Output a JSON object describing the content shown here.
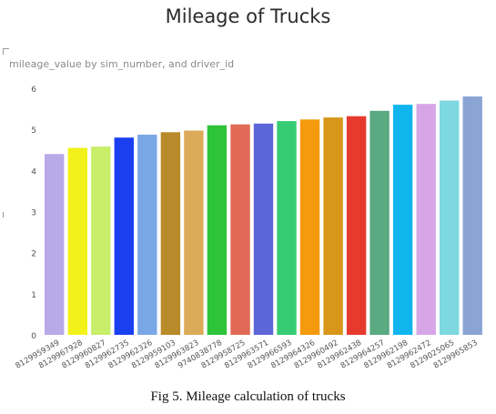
{
  "chart_data": {
    "type": "bar",
    "title": "Mileage of Trucks",
    "subtitle": "mileage_value by sim_number, and driver_id",
    "xlabel": "",
    "ylabel": "",
    "ylim": [
      0,
      6
    ],
    "yticks": [
      "0",
      "1",
      "2",
      "3",
      "4",
      "5",
      "6"
    ],
    "grid": false,
    "categories": [
      "8129959349",
      "8129967928",
      "8129960827",
      "8129962735",
      "8129962326",
      "8129959103",
      "8129963823",
      "9740838778",
      "8129958725",
      "8129963571",
      "8129966593",
      "8129964326",
      "8129960492",
      "8129962438",
      "8129964257",
      "8129962198",
      "8129962472",
      "8129025065",
      "8129965853"
    ],
    "values": [
      4.4,
      4.55,
      4.58,
      4.8,
      4.87,
      4.93,
      4.97,
      5.1,
      5.12,
      5.14,
      5.2,
      5.24,
      5.29,
      5.32,
      5.45,
      5.6,
      5.62,
      5.7,
      5.8
    ],
    "colors": [
      "#b8a9e8",
      "#f2f21a",
      "#c8ee6a",
      "#1a3ff0",
      "#7aa7e6",
      "#b88a2a",
      "#dcab5a",
      "#2ec43a",
      "#e06a55",
      "#5c66d6",
      "#36cc74",
      "#f59a0c",
      "#d8961a",
      "#e63a2e",
      "#5aaa82",
      "#10b5ee",
      "#d6a6e6",
      "#7ed8e0",
      "#8aa4d4"
    ]
  },
  "caption": "Fig 5. Mileage calculation of trucks"
}
